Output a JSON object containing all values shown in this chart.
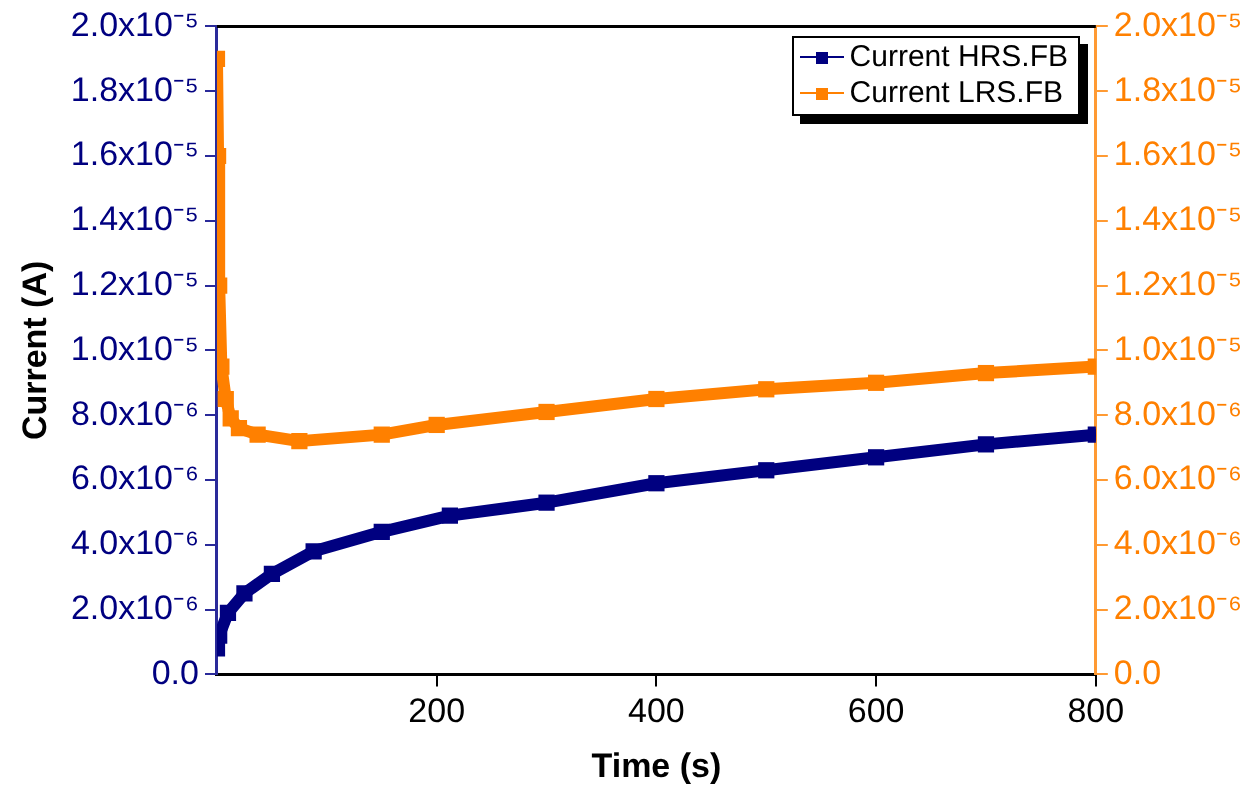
{
  "chart_data": {
    "type": "line",
    "xlabel": "Time (s)",
    "ylabel": "Current (A)",
    "xlim": [
      0,
      800
    ],
    "xticks": [
      200,
      400,
      600,
      800
    ],
    "ylim": [
      0,
      2e-05
    ],
    "yticks": [
      {
        "value": 0,
        "label": "0.0"
      },
      {
        "value": 2e-06,
        "label": "2.0x10⁻⁶"
      },
      {
        "value": 4e-06,
        "label": "4.0x10⁻⁶"
      },
      {
        "value": 6e-06,
        "label": "6.0x10⁻⁶"
      },
      {
        "value": 8e-06,
        "label": "8.0x10⁻⁶"
      },
      {
        "value": 1e-05,
        "label": "1.0x10⁻⁵"
      },
      {
        "value": 1.2e-05,
        "label": "1.2x10⁻⁵"
      },
      {
        "value": 1.4e-05,
        "label": "1.4x10⁻⁵"
      },
      {
        "value": 1.6e-05,
        "label": "1.6x10⁻⁵"
      },
      {
        "value": 1.8e-05,
        "label": "1.8x10⁻⁵"
      },
      {
        "value": 2e-05,
        "label": "2.0x10⁻⁵"
      }
    ],
    "y2lim": [
      0,
      2e-05
    ],
    "y2ticks": [
      {
        "value": 0,
        "label": "0.0"
      },
      {
        "value": 2e-06,
        "label": "2.0x10⁻⁶"
      },
      {
        "value": 4e-06,
        "label": "4.0x10⁻⁶"
      },
      {
        "value": 6e-06,
        "label": "6.0x10⁻⁶"
      },
      {
        "value": 8e-06,
        "label": "8.0x10⁻⁶"
      },
      {
        "value": 1e-05,
        "label": "1.0x10⁻⁵"
      },
      {
        "value": 1.2e-05,
        "label": "1.2x10⁻⁵"
      },
      {
        "value": 1.4e-05,
        "label": "1.4x10⁻⁵"
      },
      {
        "value": 1.6e-05,
        "label": "1.6x10⁻⁵"
      },
      {
        "value": 1.8e-05,
        "label": "1.8x10⁻⁵"
      },
      {
        "value": 2e-05,
        "label": "2.0x10⁻⁵"
      }
    ],
    "grid": false,
    "legend": "top right",
    "marker": "square",
    "series": [
      {
        "name": "Current HRS.FB",
        "color": "#000080",
        "x": [
          0,
          2,
          10,
          25,
          50,
          88,
          150,
          212,
          300,
          400,
          500,
          600,
          700,
          800
        ],
        "values": [
          8e-07,
          1.2e-06,
          1.9e-06,
          2.5e-06,
          3.1e-06,
          3.8e-06,
          4.4e-06,
          4.9e-06,
          5.3e-06,
          5.9e-06,
          6.3e-06,
          6.7e-06,
          7.1e-06,
          7.4e-06
        ]
      },
      {
        "name": "Current LRS.FB",
        "color": "#ff8000",
        "x": [
          0,
          1,
          2,
          4,
          8,
          12.5,
          20,
          37,
          75,
          150,
          200,
          300,
          400,
          500,
          600,
          700,
          800
        ],
        "values": [
          1.9e-05,
          1.6e-05,
          1.2e-05,
          9.5e-06,
          8.5e-06,
          7.9e-06,
          7.6e-06,
          7.4e-06,
          7.2e-06,
          7.4e-06,
          7.7e-06,
          8.1e-06,
          8.5e-06,
          8.8e-06,
          9e-06,
          9.3e-06,
          9.5e-06
        ]
      }
    ]
  }
}
